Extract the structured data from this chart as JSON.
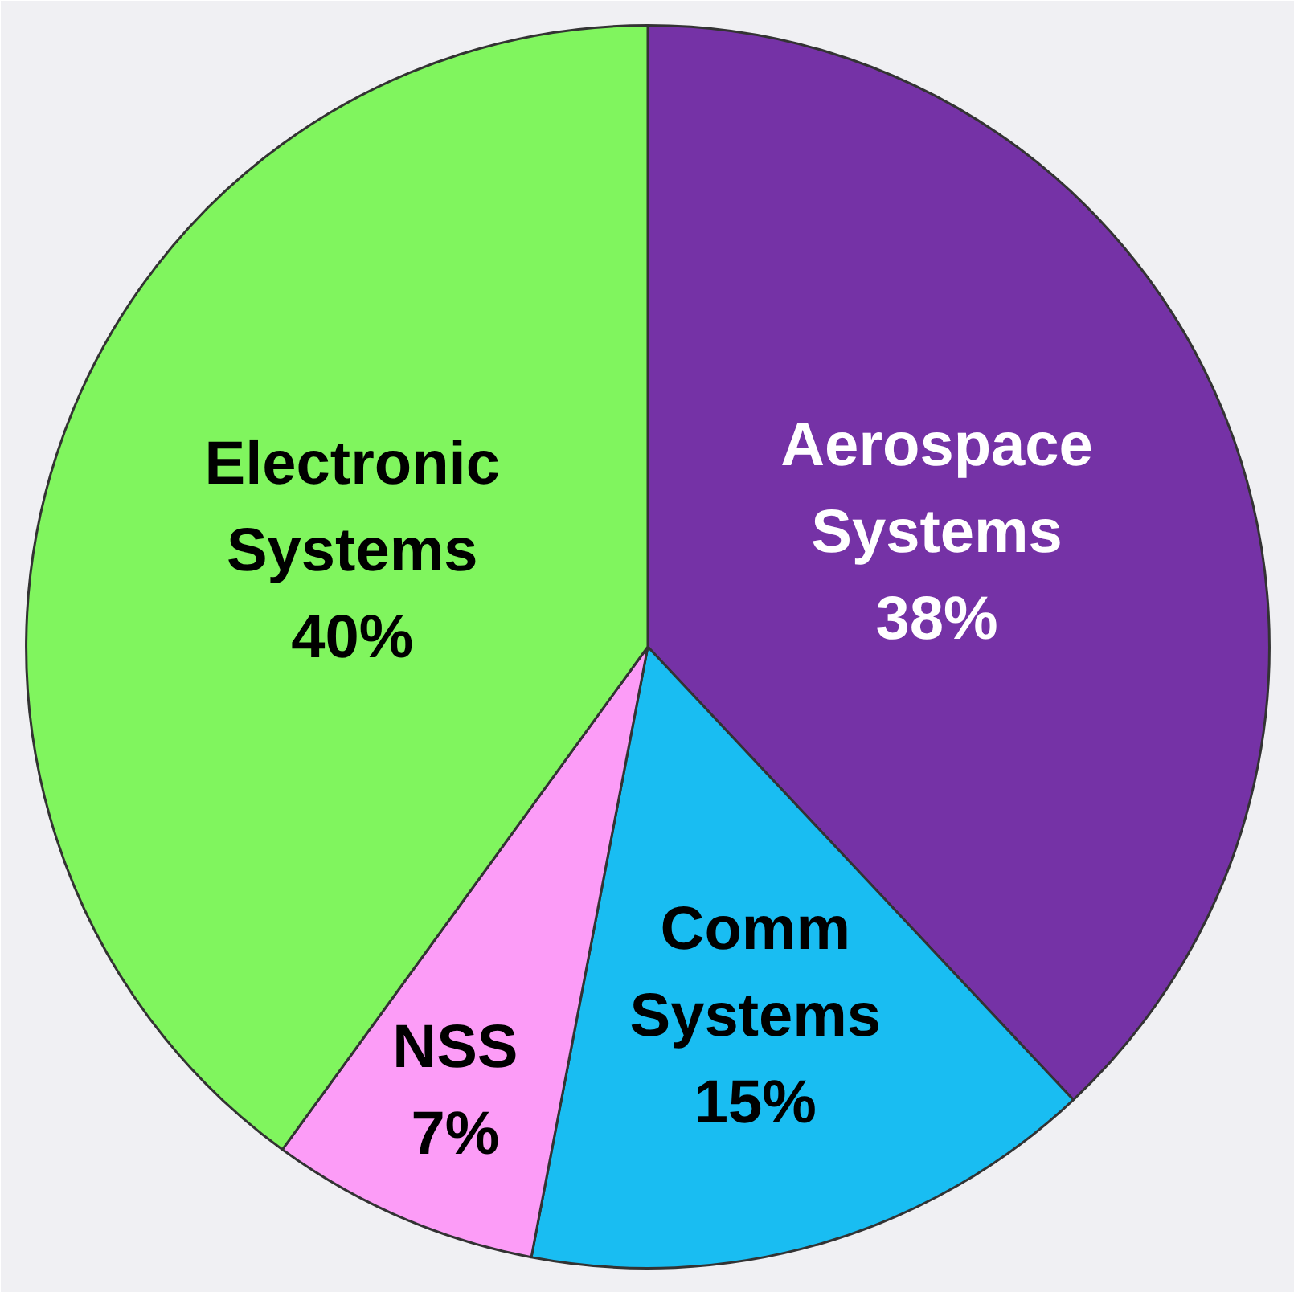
{
  "chart_data": {
    "type": "pie",
    "categories": [
      "Aerospace Systems",
      "Comm Systems",
      "NSS",
      "Electronic Systems"
    ],
    "values": [
      38,
      15,
      7,
      40
    ],
    "colors": [
      "#7532a6",
      "#19bdf2",
      "#fc9cf7",
      "#80f55e"
    ],
    "value_labels": [
      "38%",
      "15%",
      "7%",
      "40%"
    ]
  }
}
